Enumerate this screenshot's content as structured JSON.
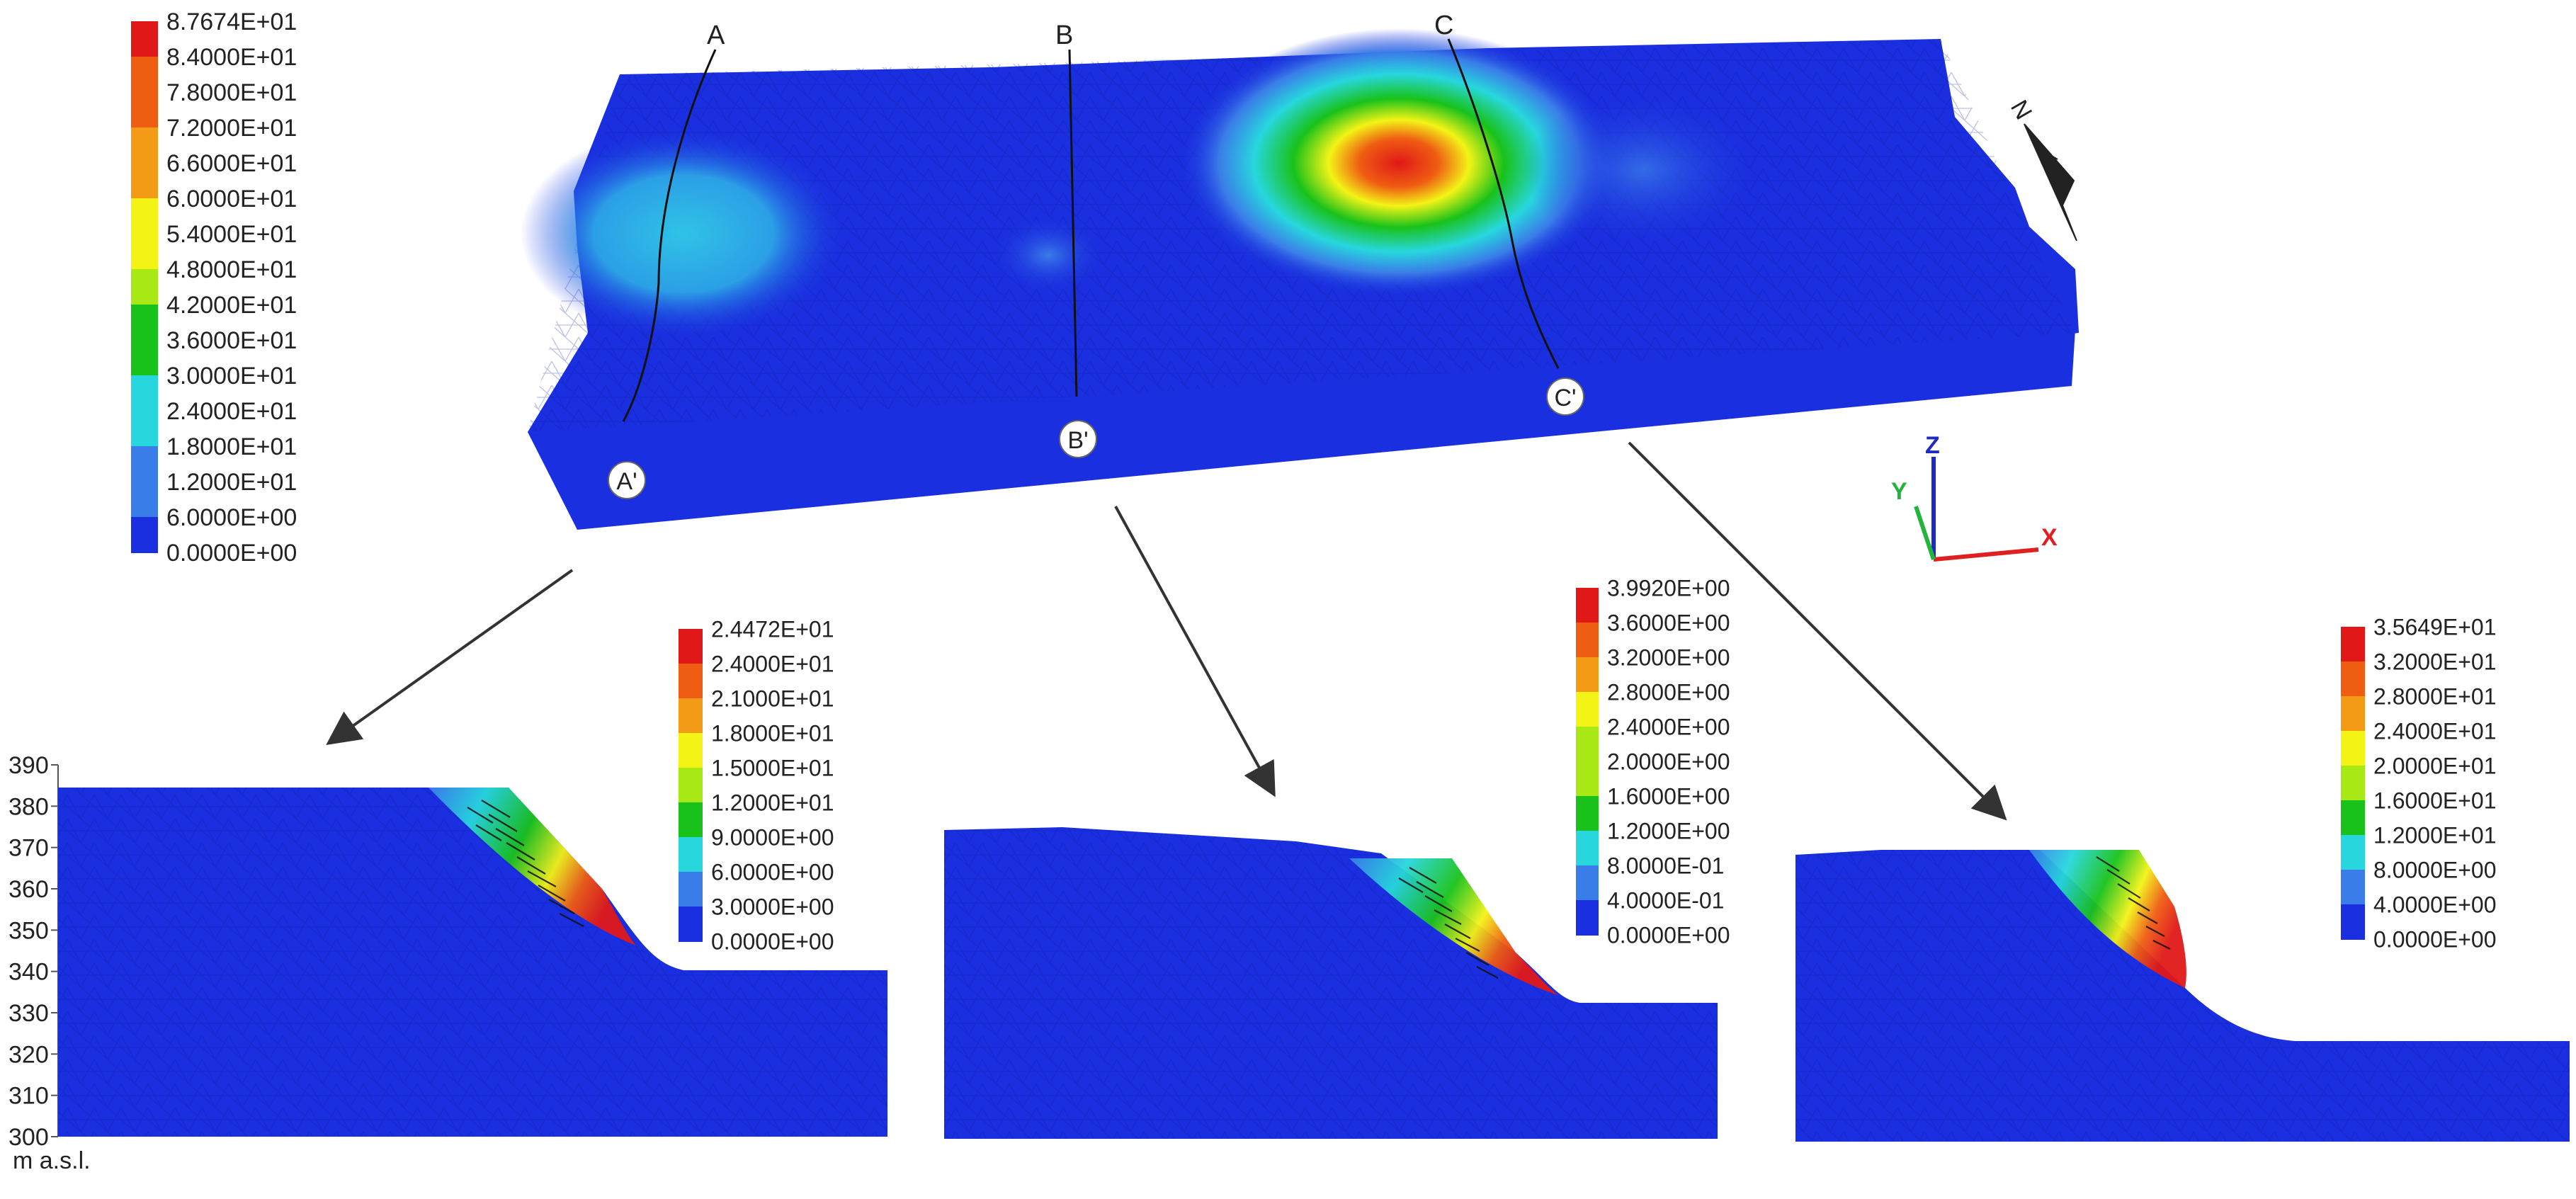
{
  "main_legend": {
    "ticks": [
      "8.7674E+01",
      "8.4000E+01",
      "7.8000E+01",
      "7.2000E+01",
      "6.6000E+01",
      "6.0000E+01",
      "5.4000E+01",
      "4.8000E+01",
      "4.2000E+01",
      "3.6000E+01",
      "3.0000E+01",
      "2.4000E+01",
      "1.8000E+01",
      "1.2000E+01",
      "6.0000E+00",
      "0.0000E+00"
    ]
  },
  "section_letters": {
    "a": "A",
    "a_prime": "A'",
    "b": "B",
    "b_prime": "B'",
    "c": "C",
    "c_prime": "C'"
  },
  "north_label": "N",
  "axes_triad": {
    "z": "Z",
    "y": "Y",
    "x": "X"
  },
  "legend_a": {
    "ticks": [
      "2.4472E+01",
      "2.4000E+01",
      "2.1000E+01",
      "1.8000E+01",
      "1.5000E+01",
      "1.2000E+01",
      "9.0000E+00",
      "6.0000E+00",
      "3.0000E+00",
      "0.0000E+00"
    ]
  },
  "legend_b": {
    "ticks": [
      "3.9920E+00",
      "3.6000E+00",
      "3.2000E+00",
      "2.8000E+00",
      "2.4000E+00",
      "2.0000E+00",
      "1.6000E+00",
      "1.2000E+00",
      "8.0000E-01",
      "4.0000E-01",
      "0.0000E+00"
    ]
  },
  "legend_c": {
    "ticks": [
      "3.5649E+01",
      "3.2000E+01",
      "2.8000E+01",
      "2.4000E+01",
      "2.0000E+01",
      "1.6000E+01",
      "1.2000E+01",
      "8.0000E+00",
      "4.0000E+00",
      "0.0000E+00"
    ]
  },
  "elevation_axis": {
    "ticks": [
      "390",
      "380",
      "370",
      "360",
      "350",
      "340",
      "330",
      "320",
      "310",
      "300"
    ],
    "unit": "m a.s.l."
  },
  "colors": {
    "blue": "#1a2fe0",
    "light_blue": "#3a7ce8",
    "cyan": "#27d7dd",
    "green": "#19c21a",
    "yellow_green": "#a8e814",
    "yellow": "#f3f316",
    "orange": "#f39a17",
    "orange_red": "#ef5d12",
    "red": "#e01818"
  }
}
